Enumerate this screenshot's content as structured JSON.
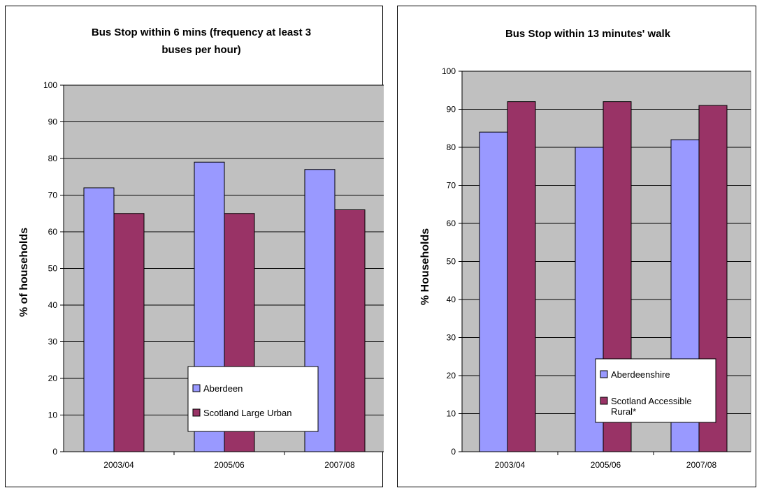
{
  "colors": {
    "series1": "#9999ff",
    "series2": "#993366",
    "plot_bg": "#c0c0c0",
    "grid": "#000000"
  },
  "chart_data": [
    {
      "type": "bar",
      "title": "Bus Stop within 6 mins (frequency at least 3 buses per hour)",
      "title_lines": [
        "Bus Stop within 6 mins (frequency at least 3",
        "buses per hour)"
      ],
      "xlabel": "",
      "ylabel": "% of households",
      "categories": [
        "2003/04",
        "2005/06",
        "2007/08"
      ],
      "ylim": [
        0,
        100
      ],
      "yticks": [
        0,
        10,
        20,
        30,
        40,
        50,
        60,
        70,
        80,
        90,
        100
      ],
      "grid": true,
      "legend_position": "bottom-right",
      "series": [
        {
          "name": "Aberdeen",
          "name_lines": [
            "Aberdeen"
          ],
          "values": [
            72,
            79,
            77
          ]
        },
        {
          "name": "Scotland Large Urban",
          "name_lines": [
            "Scotland Large Urban"
          ],
          "values": [
            65,
            65,
            66
          ]
        }
      ]
    },
    {
      "type": "bar",
      "title": "Bus Stop within 13 minutes' walk",
      "title_lines": [
        "Bus Stop within 13 minutes' walk"
      ],
      "xlabel": "",
      "ylabel": "% Households",
      "categories": [
        "2003/04",
        "2005/06",
        "2007/08"
      ],
      "ylim": [
        0,
        100
      ],
      "yticks": [
        0,
        10,
        20,
        30,
        40,
        50,
        60,
        70,
        80,
        90,
        100
      ],
      "grid": true,
      "legend_position": "bottom-right",
      "series": [
        {
          "name": "Aberdeenshire",
          "name_lines": [
            "Aberdeenshire"
          ],
          "values": [
            84,
            80,
            82
          ]
        },
        {
          "name": "Scotland Accessible Rural*",
          "name_lines": [
            "Scotland Accessible",
            "Rural*"
          ],
          "values": [
            92,
            92,
            91
          ]
        }
      ]
    }
  ]
}
